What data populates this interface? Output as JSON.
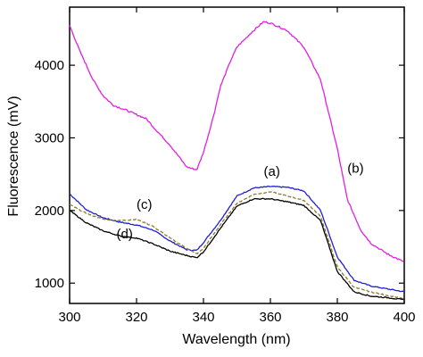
{
  "chart_data": {
    "type": "line",
    "xlabel": "Wavelength (nm)",
    "ylabel": "Fluorescence (mV)",
    "xlim": [
      300,
      400
    ],
    "ylim": [
      720,
      4800
    ],
    "xticks": [
      "300",
      "320",
      "340",
      "360",
      "380",
      "400"
    ],
    "yticks": [
      "1000",
      "2000",
      "3000",
      "4000"
    ],
    "grid": false,
    "legend": "none",
    "series": [
      {
        "name": "(a)",
        "color": "#1f1fd6",
        "style": "solid",
        "x": [
          300,
          305,
          310,
          315,
          320,
          325,
          330,
          335,
          338,
          340,
          345,
          350,
          355,
          360,
          365,
          370,
          375,
          380,
          385,
          390,
          395,
          400
        ],
        "y": [
          2230,
          2010,
          1900,
          1840,
          1800,
          1730,
          1580,
          1460,
          1450,
          1560,
          1860,
          2200,
          2310,
          2330,
          2320,
          2270,
          2000,
          1360,
          1040,
          960,
          920,
          880
        ]
      },
      {
        "name": "(b)",
        "color": "#e020e0",
        "style": "solid",
        "x": [
          300,
          303,
          307,
          310,
          313,
          317,
          320,
          323,
          325,
          330,
          335,
          338,
          340,
          343,
          345,
          348,
          350,
          355,
          358,
          360,
          365,
          370,
          375,
          380,
          383,
          387,
          390,
          395,
          400
        ],
        "y": [
          4550,
          4200,
          3800,
          3580,
          3450,
          3380,
          3320,
          3260,
          3150,
          2900,
          2600,
          2560,
          2800,
          3300,
          3700,
          4050,
          4250,
          4480,
          4600,
          4580,
          4480,
          4250,
          3800,
          2850,
          2150,
          1730,
          1550,
          1400,
          1290
        ]
      },
      {
        "name": "(c)",
        "color": "#8c7a30",
        "style": "dashed",
        "x": [
          300,
          305,
          310,
          315,
          320,
          325,
          330,
          335,
          338,
          340,
          345,
          350,
          355,
          360,
          365,
          370,
          375,
          380,
          385,
          390,
          395,
          400
        ],
        "y": [
          2080,
          1960,
          1880,
          1860,
          1880,
          1780,
          1620,
          1480,
          1400,
          1480,
          1800,
          2100,
          2220,
          2260,
          2200,
          2140,
          1920,
          1220,
          940,
          880,
          830,
          780
        ]
      },
      {
        "name": "(d)",
        "color": "#000000",
        "style": "solid",
        "x": [
          300,
          305,
          310,
          315,
          320,
          325,
          330,
          335,
          338,
          340,
          345,
          350,
          355,
          360,
          365,
          370,
          375,
          380,
          385,
          390,
          395,
          400
        ],
        "y": [
          2000,
          1830,
          1720,
          1650,
          1620,
          1540,
          1440,
          1380,
          1350,
          1430,
          1750,
          2060,
          2160,
          2160,
          2120,
          2070,
          1860,
          1160,
          880,
          820,
          800,
          770
        ]
      }
    ],
    "annotations": [
      {
        "text": "(a)",
        "x": 358,
        "y": 2480
      },
      {
        "text": "(b)",
        "x": 383,
        "y": 2520
      },
      {
        "text": "(c)",
        "x": 320,
        "y": 2020
      },
      {
        "text": "(d)",
        "x": 314,
        "y": 1620
      }
    ]
  }
}
